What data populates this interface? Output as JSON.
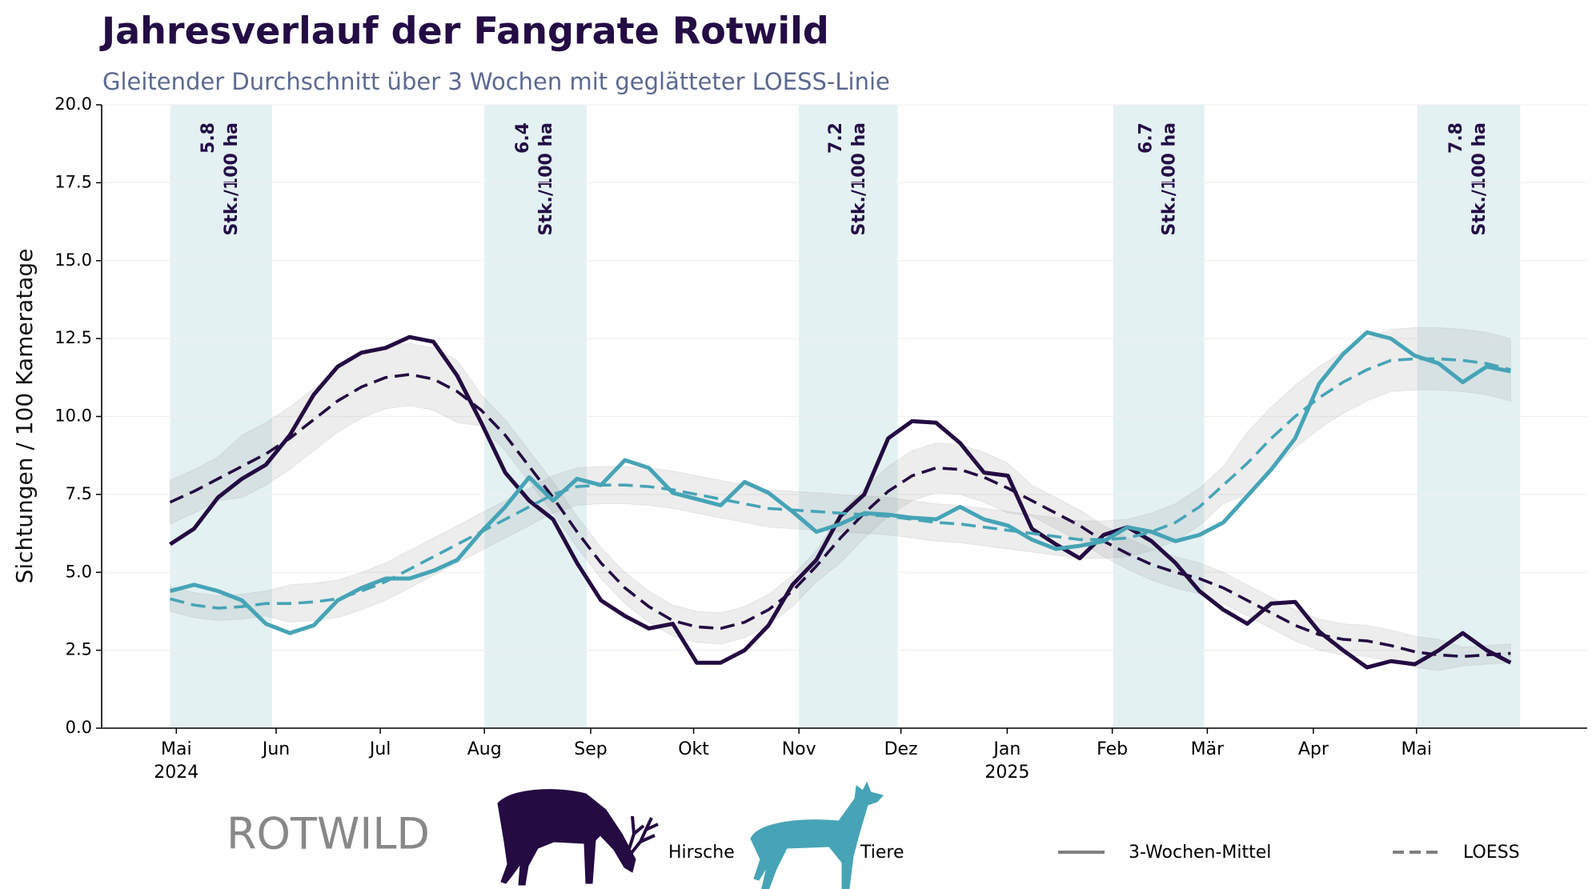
{
  "chart_data": {
    "type": "line",
    "title": "Jahresverlauf der Fangrate Rotwild",
    "subtitle": "Gleitender Durchschnitt über 3 Wochen mit geglätteter LOESS-Linie",
    "y_label": "Sichtungen / 100 Kameratage",
    "x": [
      0,
      1,
      2,
      3,
      4,
      5,
      6,
      7,
      8,
      9,
      10,
      11,
      12,
      13,
      14,
      15,
      16,
      17,
      18,
      19,
      20,
      21,
      22,
      23,
      24,
      25,
      26,
      27,
      28,
      29,
      30,
      31,
      32,
      33,
      34,
      35,
      36,
      37,
      38,
      39,
      40,
      41,
      42,
      43,
      44,
      45,
      46,
      47,
      48,
      49,
      50,
      51,
      52,
      53,
      54,
      55,
      56
    ],
    "xlim": [
      -2.86,
      59.2
    ],
    "xticks": [
      {
        "value": 0.26,
        "label": "Mai\n2024"
      },
      {
        "value": 4.43,
        "label": "Jun"
      },
      {
        "value": 8.78,
        "label": "Jul"
      },
      {
        "value": 13.13,
        "label": "Aug"
      },
      {
        "value": 17.57,
        "label": "Sep"
      },
      {
        "value": 21.87,
        "label": "Okt"
      },
      {
        "value": 26.27,
        "label": "Nov"
      },
      {
        "value": 30.53,
        "label": "Dez"
      },
      {
        "value": 34.97,
        "label": "Jan\n2025"
      },
      {
        "value": 39.36,
        "label": "Feb"
      },
      {
        "value": 43.33,
        "label": "Mär"
      },
      {
        "value": 47.76,
        "label": "Apr"
      },
      {
        "value": 52.07,
        "label": "Mai"
      }
    ],
    "ylim": [
      0,
      20
    ],
    "yticks": [
      {
        "value": 0,
        "label": "0.0"
      },
      {
        "value": 2.5,
        "label": "2.5"
      },
      {
        "value": 5,
        "label": "5.0"
      },
      {
        "value": 7.5,
        "label": "7.5"
      },
      {
        "value": 10,
        "label": "10.0"
      },
      {
        "value": 12.5,
        "label": "12.5"
      },
      {
        "value": 15,
        "label": "15.0"
      },
      {
        "value": 17.5,
        "label": "17.5"
      },
      {
        "value": 20,
        "label": "20.0"
      }
    ],
    "grid": true,
    "band_color": "#e3f1f3",
    "band_unit": "Stk./100 ha",
    "bands": [
      {
        "start": 0,
        "end": 4.26,
        "value": 5.8
      },
      {
        "start": 13.13,
        "end": 17.4,
        "value": 6.4
      },
      {
        "start": 26.27,
        "end": 30.4,
        "value": 7.2
      },
      {
        "start": 39.4,
        "end": 43.2,
        "value": 6.7
      },
      {
        "start": 52.1,
        "end": 56.4,
        "value": 7.8
      }
    ],
    "series": [
      {
        "name": "Hirsche",
        "color": "#240b42",
        "values": [
          5.9,
          6.4,
          7.4,
          8.0,
          8.45,
          9.4,
          10.7,
          11.6,
          12.05,
          12.2,
          12.55,
          12.4,
          11.3,
          9.8,
          8.2,
          7.3,
          6.7,
          5.3,
          4.1,
          3.6,
          3.2,
          3.35,
          2.1,
          2.1,
          2.5,
          3.3,
          4.6,
          5.4,
          6.8,
          7.5,
          9.3,
          9.85,
          9.8,
          9.15,
          8.2,
          8.1,
          6.4,
          5.9,
          5.45,
          6.2,
          6.45,
          6.0,
          5.3,
          4.4,
          3.8,
          3.35,
          4.0,
          4.05,
          3.1,
          2.5,
          1.95,
          2.15,
          2.05,
          2.5,
          3.05,
          2.5,
          2.1
        ],
        "loess": [
          7.25,
          7.6,
          8.0,
          8.4,
          8.8,
          9.3,
          9.9,
          10.5,
          10.95,
          11.25,
          11.35,
          11.2,
          10.8,
          10.2,
          9.4,
          8.4,
          7.4,
          6.3,
          5.3,
          4.5,
          3.9,
          3.45,
          3.25,
          3.2,
          3.4,
          3.8,
          4.4,
          5.2,
          6.1,
          6.9,
          7.6,
          8.1,
          8.35,
          8.3,
          8.05,
          7.7,
          7.3,
          6.9,
          6.5,
          6.0,
          5.6,
          5.25,
          5.0,
          4.8,
          4.5,
          4.1,
          3.7,
          3.3,
          3.0,
          2.85,
          2.8,
          2.65,
          2.45,
          2.35,
          2.3,
          2.35,
          2.4
        ],
        "loess_lower": [
          6.55,
          6.9,
          7.3,
          7.4,
          7.8,
          8.3,
          8.9,
          9.5,
          9.95,
          10.25,
          10.35,
          10.2,
          9.8,
          9.7,
          8.9,
          7.9,
          6.9,
          5.8,
          4.8,
          4.0,
          3.4,
          2.95,
          2.75,
          2.7,
          2.9,
          3.3,
          3.9,
          4.7,
          5.3,
          6.1,
          6.8,
          7.3,
          7.55,
          7.5,
          7.25,
          6.9,
          6.8,
          6.4,
          6.0,
          5.5,
          5.1,
          4.75,
          4.5,
          4.3,
          4.0,
          3.6,
          3.2,
          2.8,
          2.5,
          2.35,
          2.3,
          2.15,
          1.95,
          1.85,
          2.0,
          2.05,
          2.1
        ],
        "loess_upper": [
          7.95,
          8.3,
          8.7,
          9.4,
          9.8,
          10.3,
          10.9,
          11.5,
          11.95,
          12.25,
          12.35,
          12.2,
          11.8,
          10.7,
          9.9,
          8.9,
          7.9,
          6.8,
          5.8,
          5.0,
          4.4,
          3.95,
          3.75,
          3.7,
          3.9,
          4.3,
          4.9,
          5.7,
          6.9,
          7.7,
          8.4,
          8.9,
          9.15,
          9.1,
          8.85,
          8.5,
          7.8,
          7.4,
          7.0,
          6.5,
          6.1,
          5.75,
          5.5,
          5.3,
          5.0,
          4.6,
          4.2,
          3.8,
          3.5,
          3.35,
          3.3,
          3.15,
          2.95,
          2.85,
          2.6,
          2.65,
          2.7
        ]
      },
      {
        "name": "Tiere",
        "color": "#46a4b6",
        "values": [
          4.4,
          4.6,
          4.4,
          4.1,
          3.35,
          3.05,
          3.3,
          4.1,
          4.5,
          4.8,
          4.8,
          5.05,
          5.4,
          6.3,
          7.1,
          8.05,
          7.3,
          8.0,
          7.8,
          8.6,
          8.35,
          7.55,
          7.35,
          7.15,
          7.9,
          7.55,
          6.95,
          6.3,
          6.55,
          6.9,
          6.85,
          6.75,
          6.7,
          7.1,
          6.7,
          6.5,
          6.05,
          5.75,
          5.85,
          6.0,
          6.45,
          6.3,
          6.0,
          6.2,
          6.6,
          7.45,
          8.3,
          9.3,
          11.05,
          12.0,
          12.7,
          12.5,
          11.95,
          11.7,
          11.1,
          11.6,
          11.45
        ],
        "loess": [
          4.15,
          3.95,
          3.85,
          3.9,
          4.0,
          4.0,
          4.05,
          4.15,
          4.4,
          4.7,
          5.1,
          5.5,
          5.9,
          6.3,
          6.7,
          7.1,
          7.5,
          7.75,
          7.8,
          7.8,
          7.75,
          7.65,
          7.5,
          7.35,
          7.2,
          7.05,
          7.0,
          6.95,
          6.9,
          6.85,
          6.8,
          6.7,
          6.6,
          6.55,
          6.45,
          6.35,
          6.25,
          6.15,
          6.05,
          6.05,
          6.1,
          6.3,
          6.6,
          7.1,
          7.8,
          8.5,
          9.3,
          10.0,
          10.6,
          11.1,
          11.5,
          11.8,
          11.85,
          11.85,
          11.8,
          11.7,
          11.5
        ],
        "loess_lower": [
          3.75,
          3.55,
          3.45,
          3.5,
          3.6,
          3.4,
          3.45,
          3.55,
          3.8,
          4.1,
          4.5,
          4.9,
          5.3,
          5.7,
          6.1,
          6.5,
          6.9,
          7.15,
          7.2,
          7.2,
          7.15,
          7.05,
          6.9,
          6.75,
          6.6,
          6.45,
          6.4,
          6.35,
          6.3,
          6.25,
          6.2,
          6.1,
          6.0,
          5.95,
          5.85,
          5.75,
          5.65,
          5.55,
          5.45,
          5.45,
          5.5,
          5.7,
          6.0,
          6.5,
          7.2,
          7.5,
          8.3,
          9.0,
          9.6,
          10.1,
          10.5,
          10.8,
          10.85,
          10.85,
          10.8,
          10.7,
          10.5
        ],
        "loess_upper": [
          4.55,
          4.35,
          4.25,
          4.3,
          4.4,
          4.6,
          4.65,
          4.75,
          5.0,
          5.3,
          5.7,
          6.1,
          6.5,
          6.9,
          7.3,
          7.7,
          8.1,
          8.35,
          8.4,
          8.4,
          8.35,
          8.25,
          8.1,
          7.95,
          7.8,
          7.65,
          7.6,
          7.55,
          7.5,
          7.45,
          7.4,
          7.3,
          7.2,
          7.15,
          7.05,
          6.95,
          6.85,
          6.75,
          6.65,
          6.65,
          6.7,
          6.9,
          7.2,
          7.7,
          8.4,
          9.5,
          10.3,
          11.0,
          11.6,
          12.1,
          12.5,
          12.8,
          12.85,
          12.85,
          12.8,
          12.7,
          12.5
        ]
      }
    ],
    "legend_styles": [
      {
        "name": "3-Wochen-Mittel",
        "dash": false
      },
      {
        "name": "LOESS",
        "dash": true
      }
    ],
    "logo": "ROTWILD"
  }
}
